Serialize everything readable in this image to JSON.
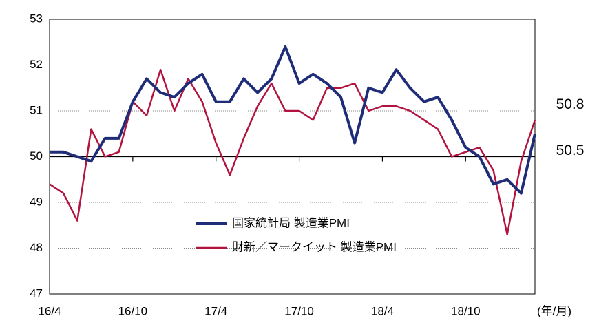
{
  "chart_data": {
    "type": "line",
    "x_label": "(年/月)",
    "categories": [
      "16/4",
      null,
      null,
      null,
      null,
      null,
      "16/10",
      null,
      null,
      null,
      null,
      null,
      "17/4",
      null,
      null,
      null,
      null,
      null,
      "17/10",
      null,
      null,
      null,
      null,
      null,
      "18/4",
      null,
      null,
      null,
      null,
      null,
      "18/10",
      null,
      null,
      null,
      null,
      null
    ],
    "series": [
      {
        "name": "国家統計局 製造業PMI",
        "color": "#1f2d78",
        "values": [
          50.1,
          50.1,
          50.0,
          49.9,
          50.4,
          50.4,
          51.2,
          51.7,
          51.4,
          51.3,
          51.6,
          51.8,
          51.2,
          51.2,
          51.7,
          51.4,
          51.7,
          52.4,
          51.6,
          51.8,
          51.6,
          51.3,
          50.3,
          51.5,
          51.4,
          51.9,
          51.5,
          51.2,
          51.3,
          50.8,
          50.2,
          50.0,
          49.4,
          49.5,
          49.2,
          50.5
        ]
      },
      {
        "name": "財新／マークイット 製造業PMI",
        "color": "#b2143f",
        "values": [
          49.4,
          49.2,
          48.6,
          50.6,
          50.0,
          50.1,
          51.2,
          50.9,
          51.9,
          51.0,
          51.7,
          51.2,
          50.3,
          49.6,
          50.4,
          51.1,
          51.6,
          51.0,
          51.0,
          50.8,
          51.5,
          51.5,
          51.6,
          51.0,
          51.1,
          51.1,
          51.0,
          50.8,
          50.6,
          50.0,
          50.1,
          50.2,
          49.7,
          48.3,
          49.9,
          50.8
        ]
      }
    ],
    "ylim": [
      47,
      53
    ],
    "yticks": [
      47,
      48,
      49,
      50,
      51,
      52,
      53
    ],
    "grid": true,
    "x_axis_at": 50
  }
}
